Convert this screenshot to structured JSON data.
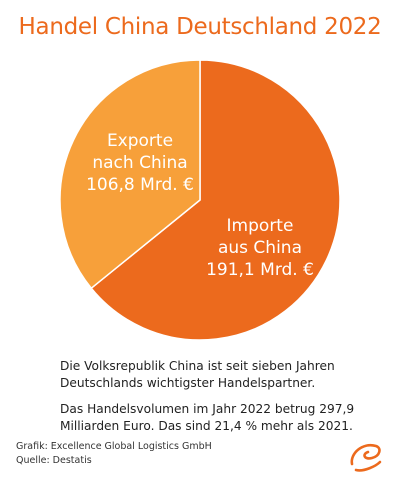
{
  "chart_data": {
    "type": "pie",
    "title": "Handel China Deutschland 2022",
    "slices": [
      {
        "label_lines": [
          "Importe",
          "aus China",
          "191,1 Mrd. €"
        ],
        "value": 191.1,
        "color": "#ec6a1d"
      },
      {
        "label_lines": [
          "Exporte",
          "nach China",
          "106,8 Mrd. €"
        ],
        "value": 106.8,
        "color": "#f7a03a"
      }
    ]
  },
  "notes": [
    "Die Volksrepublik China ist seit sieben Jahren Deutschlands wichtigster Handelspartner.",
    "Das Handelsvolumen im Jahr 2022 betrug 297,9 Milliarden Euro. Das sind 21,4 % mehr als 2021."
  ],
  "credits": {
    "grafik": "Grafik: Excellence Global Logistics GmbH",
    "quelle": "Quelle: Destatis"
  },
  "logo": {
    "icon": "logo-swirl-icon",
    "color": "#ec6a1d"
  }
}
